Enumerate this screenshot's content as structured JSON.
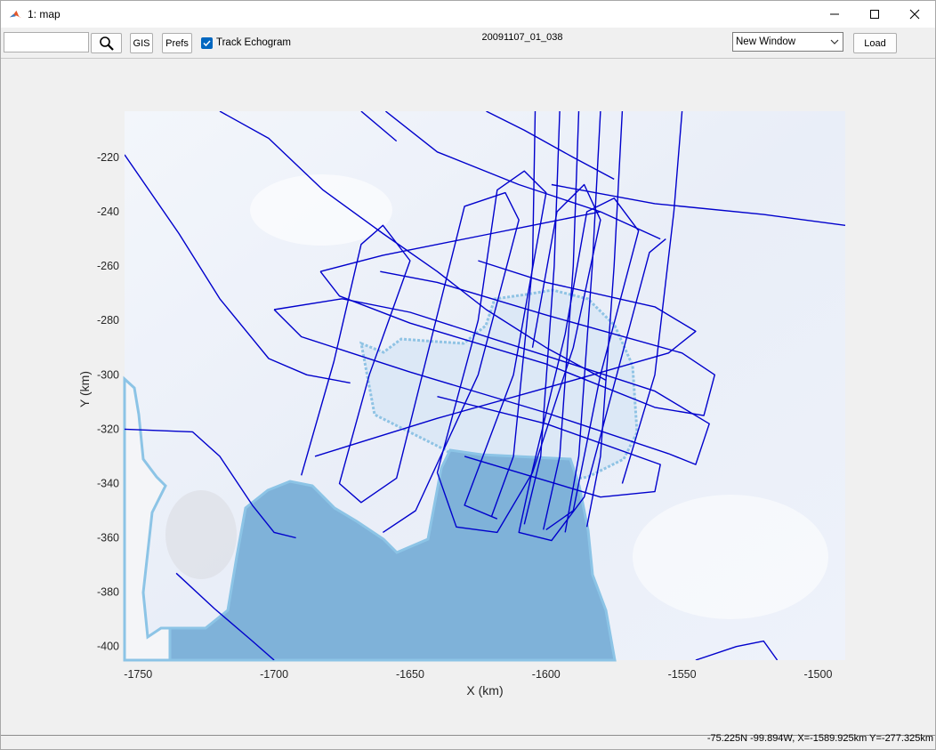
{
  "window": {
    "title": "1: map"
  },
  "toolbar": {
    "search_value": "",
    "gis_label": "GIS",
    "prefs_label": "Prefs",
    "track_echogram_label": "Track Echogram",
    "track_echogram_checked": true,
    "segment_id": "20091107_01_038",
    "window_select": "New Window",
    "load_label": "Load"
  },
  "status": {
    "text": "-75.225N -99.894W, X=-1589.925km Y=-277.325km"
  },
  "colors": {
    "track": "#0000cc",
    "ocean": "#7fb2d9",
    "ice": "#e8eef8",
    "accent": "#0067c0"
  },
  "chart_data": {
    "type": "map",
    "xlabel": "X (km)",
    "ylabel": "Y (km)",
    "xlim": [
      -1755,
      -1490
    ],
    "ylim": [
      -405,
      -203
    ],
    "xticks": [
      -1750,
      -1700,
      -1650,
      -1600,
      -1550,
      -1500
    ],
    "yticks": [
      -220,
      -240,
      -260,
      -280,
      -300,
      -320,
      -340,
      -360,
      -380,
      -400
    ],
    "series": [
      {
        "points": [
          [
            -1755,
            -219
          ],
          [
            -1735,
            -248
          ],
          [
            -1720,
            -272
          ],
          [
            -1702,
            -294
          ],
          [
            -1688,
            -300
          ],
          [
            -1672,
            -303
          ]
        ]
      },
      {
        "points": [
          [
            -1720,
            -203
          ],
          [
            -1702,
            -213
          ],
          [
            -1682,
            -232
          ],
          [
            -1660,
            -248
          ],
          [
            -1640,
            -262
          ],
          [
            -1622,
            -276
          ],
          [
            -1600,
            -290
          ],
          [
            -1578,
            -302
          ]
        ]
      },
      {
        "points": [
          [
            -1668,
            -203
          ],
          [
            -1655,
            -214
          ]
        ]
      },
      {
        "points": [
          [
            -1659,
            -203
          ],
          [
            -1640,
            -218
          ],
          [
            -1610,
            -230
          ],
          [
            -1580,
            -240
          ],
          [
            -1558,
            -250
          ]
        ]
      },
      {
        "points": [
          [
            -1622,
            -203
          ],
          [
            -1608,
            -210
          ],
          [
            -1590,
            -220
          ],
          [
            -1575,
            -228
          ]
        ]
      },
      {
        "points": [
          [
            -1598,
            -230
          ],
          [
            -1560,
            -237
          ],
          [
            -1520,
            -241
          ],
          [
            -1490,
            -245
          ]
        ]
      },
      {
        "points": [
          [
            -1755,
            -320
          ],
          [
            -1730,
            -321
          ],
          [
            -1720,
            -330
          ],
          [
            -1708,
            -348
          ],
          [
            -1700,
            -358
          ],
          [
            -1692,
            -360
          ]
        ]
      },
      {
        "points": [
          [
            -1736,
            -373
          ],
          [
            -1722,
            -386
          ],
          [
            -1708,
            -398
          ],
          [
            -1700,
            -405
          ]
        ]
      },
      {
        "points": [
          [
            -1545,
            -405
          ],
          [
            -1530,
            -400
          ],
          [
            -1520,
            -398
          ],
          [
            -1515,
            -405
          ]
        ]
      },
      {
        "points": [
          [
            -1683,
            -262
          ],
          [
            -1660,
            -256
          ],
          [
            -1620,
            -248
          ],
          [
            -1580,
            -240
          ]
        ]
      },
      {
        "points": [
          [
            -1683,
            -262
          ],
          [
            -1676,
            -271
          ],
          [
            -1650,
            -281
          ],
          [
            -1600,
            -296
          ],
          [
            -1560,
            -312
          ],
          [
            -1542,
            -315
          ],
          [
            -1538,
            -300
          ],
          [
            -1550,
            -292
          ],
          [
            -1600,
            -278
          ],
          [
            -1640,
            -266
          ],
          [
            -1661,
            -262
          ]
        ]
      },
      {
        "points": [
          [
            -1700,
            -276
          ],
          [
            -1690,
            -286
          ],
          [
            -1650,
            -299
          ],
          [
            -1600,
            -314
          ],
          [
            -1555,
            -329
          ],
          [
            -1545,
            -333
          ],
          [
            -1540,
            -318
          ],
          [
            -1560,
            -306
          ],
          [
            -1600,
            -293
          ],
          [
            -1650,
            -277
          ],
          [
            -1675,
            -272
          ],
          [
            -1700,
            -276
          ]
        ]
      },
      {
        "points": [
          [
            -1685,
            -330
          ],
          [
            -1640,
            -316
          ],
          [
            -1590,
            -302
          ],
          [
            -1555,
            -292
          ],
          [
            -1545,
            -284
          ],
          [
            -1560,
            -275
          ],
          [
            -1600,
            -266
          ],
          [
            -1625,
            -258
          ]
        ]
      },
      {
        "points": [
          [
            -1630,
            -330
          ],
          [
            -1580,
            -345
          ],
          [
            -1560,
            -343
          ],
          [
            -1558,
            -333
          ],
          [
            -1600,
            -318
          ],
          [
            -1640,
            -308
          ]
        ]
      },
      {
        "points": [
          [
            -1660,
            -358
          ],
          [
            -1648,
            -350
          ],
          [
            -1625,
            -300
          ],
          [
            -1610,
            -243
          ],
          [
            -1615,
            -233
          ],
          [
            -1630,
            -238
          ],
          [
            -1643,
            -290
          ],
          [
            -1655,
            -338
          ],
          [
            -1668,
            -347
          ],
          [
            -1676,
            -340
          ],
          [
            -1665,
            -300
          ],
          [
            -1650,
            -258
          ],
          [
            -1660,
            -245
          ],
          [
            -1668,
            -252
          ],
          [
            -1678,
            -295
          ],
          [
            -1690,
            -337
          ]
        ]
      },
      {
        "points": [
          [
            -1618,
            -353
          ],
          [
            -1630,
            -348
          ],
          [
            -1612,
            -300
          ],
          [
            -1600,
            -233
          ],
          [
            -1608,
            -225
          ],
          [
            -1618,
            -232
          ],
          [
            -1625,
            -280
          ],
          [
            -1640,
            -336
          ],
          [
            -1633,
            -356
          ],
          [
            -1618,
            -358
          ],
          [
            -1605,
            -336
          ],
          [
            -1590,
            -290
          ],
          [
            -1580,
            -243
          ],
          [
            -1586,
            -230
          ],
          [
            -1596,
            -240
          ],
          [
            -1605,
            -290
          ]
        ]
      },
      {
        "points": [
          [
            -1600,
            -357
          ],
          [
            -1590,
            -350
          ],
          [
            -1580,
            -300
          ],
          [
            -1566,
            -247
          ],
          [
            -1575,
            -235
          ],
          [
            -1585,
            -240
          ],
          [
            -1593,
            -285
          ],
          [
            -1605,
            -335
          ],
          [
            -1610,
            -358
          ],
          [
            -1598,
            -361
          ],
          [
            -1586,
            -345
          ],
          [
            -1574,
            -300
          ],
          [
            -1562,
            -255
          ],
          [
            -1556,
            -250
          ]
        ]
      },
      {
        "points": [
          [
            -1604,
            -203
          ],
          [
            -1605,
            -260
          ],
          [
            -1612,
            -330
          ],
          [
            -1620,
            -352
          ]
        ]
      },
      {
        "points": [
          [
            -1595,
            -203
          ],
          [
            -1597,
            -260
          ],
          [
            -1602,
            -330
          ],
          [
            -1608,
            -355
          ]
        ]
      },
      {
        "points": [
          [
            -1588,
            -203
          ],
          [
            -1590,
            -260
          ],
          [
            -1595,
            -330
          ],
          [
            -1601,
            -357
          ]
        ]
      },
      {
        "points": [
          [
            -1580,
            -203
          ],
          [
            -1583,
            -260
          ],
          [
            -1588,
            -330
          ],
          [
            -1593,
            -358
          ]
        ]
      },
      {
        "points": [
          [
            -1572,
            -203
          ],
          [
            -1575,
            -260
          ],
          [
            -1580,
            -330
          ],
          [
            -1585,
            -356
          ]
        ]
      },
      {
        "points": [
          [
            -1550,
            -203
          ],
          [
            -1553,
            -240
          ],
          [
            -1560,
            -300
          ],
          [
            -1572,
            -340
          ]
        ]
      }
    ]
  }
}
